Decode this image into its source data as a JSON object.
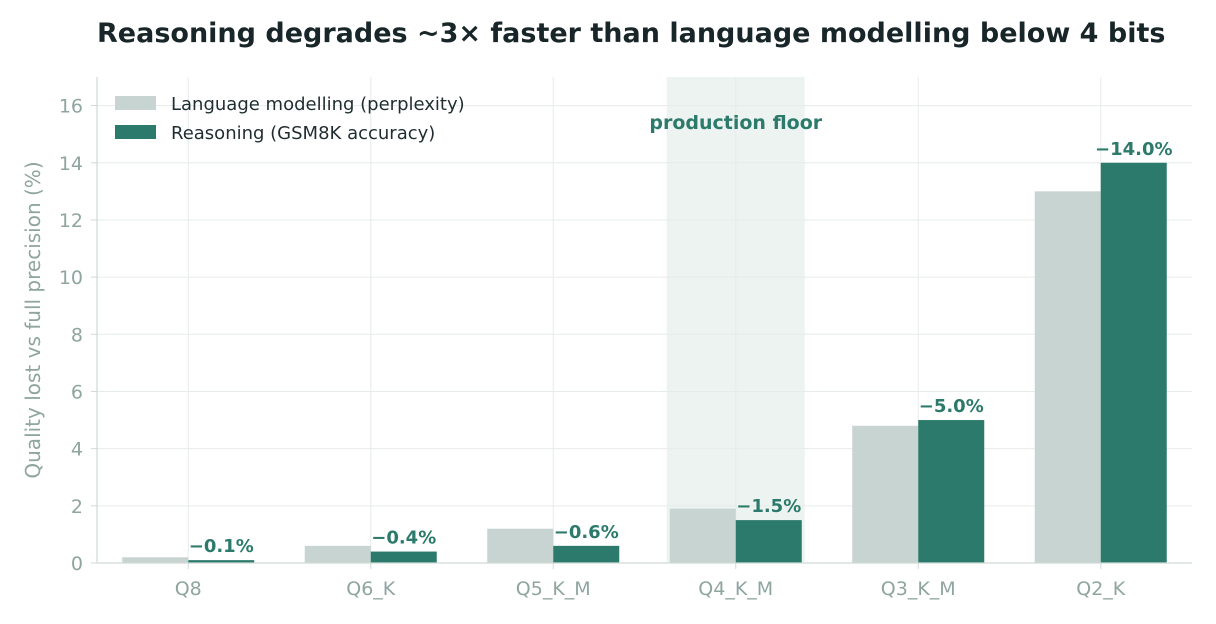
{
  "colors": {
    "title": "#182529",
    "axis_text": "#8fa5a0",
    "grid": "#e6ecea",
    "axis_line": "#cfdad7",
    "accent": "#2c7a6b",
    "light_bar": "#c7d4d1",
    "band": "#e4ecea",
    "legend_text": "#1f2d31"
  },
  "chart_data": {
    "type": "bar",
    "title": "Reasoning degrades ~3× faster than language modelling below 4 bits",
    "xlabel": "",
    "ylabel": "Quality lost vs full precision (%)",
    "categories": [
      "Q8",
      "Q6_K",
      "Q5_K_M",
      "Q4_K_M",
      "Q3_K_M",
      "Q2_K"
    ],
    "ylim": [
      0,
      17
    ],
    "yticks": [
      "0",
      "2",
      "4",
      "6",
      "8",
      "10",
      "12",
      "14",
      "16"
    ],
    "grid": true,
    "legend_position": "top-left",
    "series": [
      {
        "name": "Language modelling (perplexity)",
        "values": [
          0.2,
          0.6,
          1.2,
          1.9,
          4.8,
          13.0
        ]
      },
      {
        "name": "Reasoning (GSM8K accuracy)",
        "values": [
          0.1,
          0.4,
          0.6,
          1.5,
          5.0,
          14.0
        ],
        "labels": [
          "−0.1%",
          "−0.4%",
          "−0.6%",
          "−1.5%",
          "−5.0%",
          "−14.0%"
        ]
      }
    ],
    "highlight": {
      "category": "Q4_K_M",
      "label": "production floor"
    }
  }
}
